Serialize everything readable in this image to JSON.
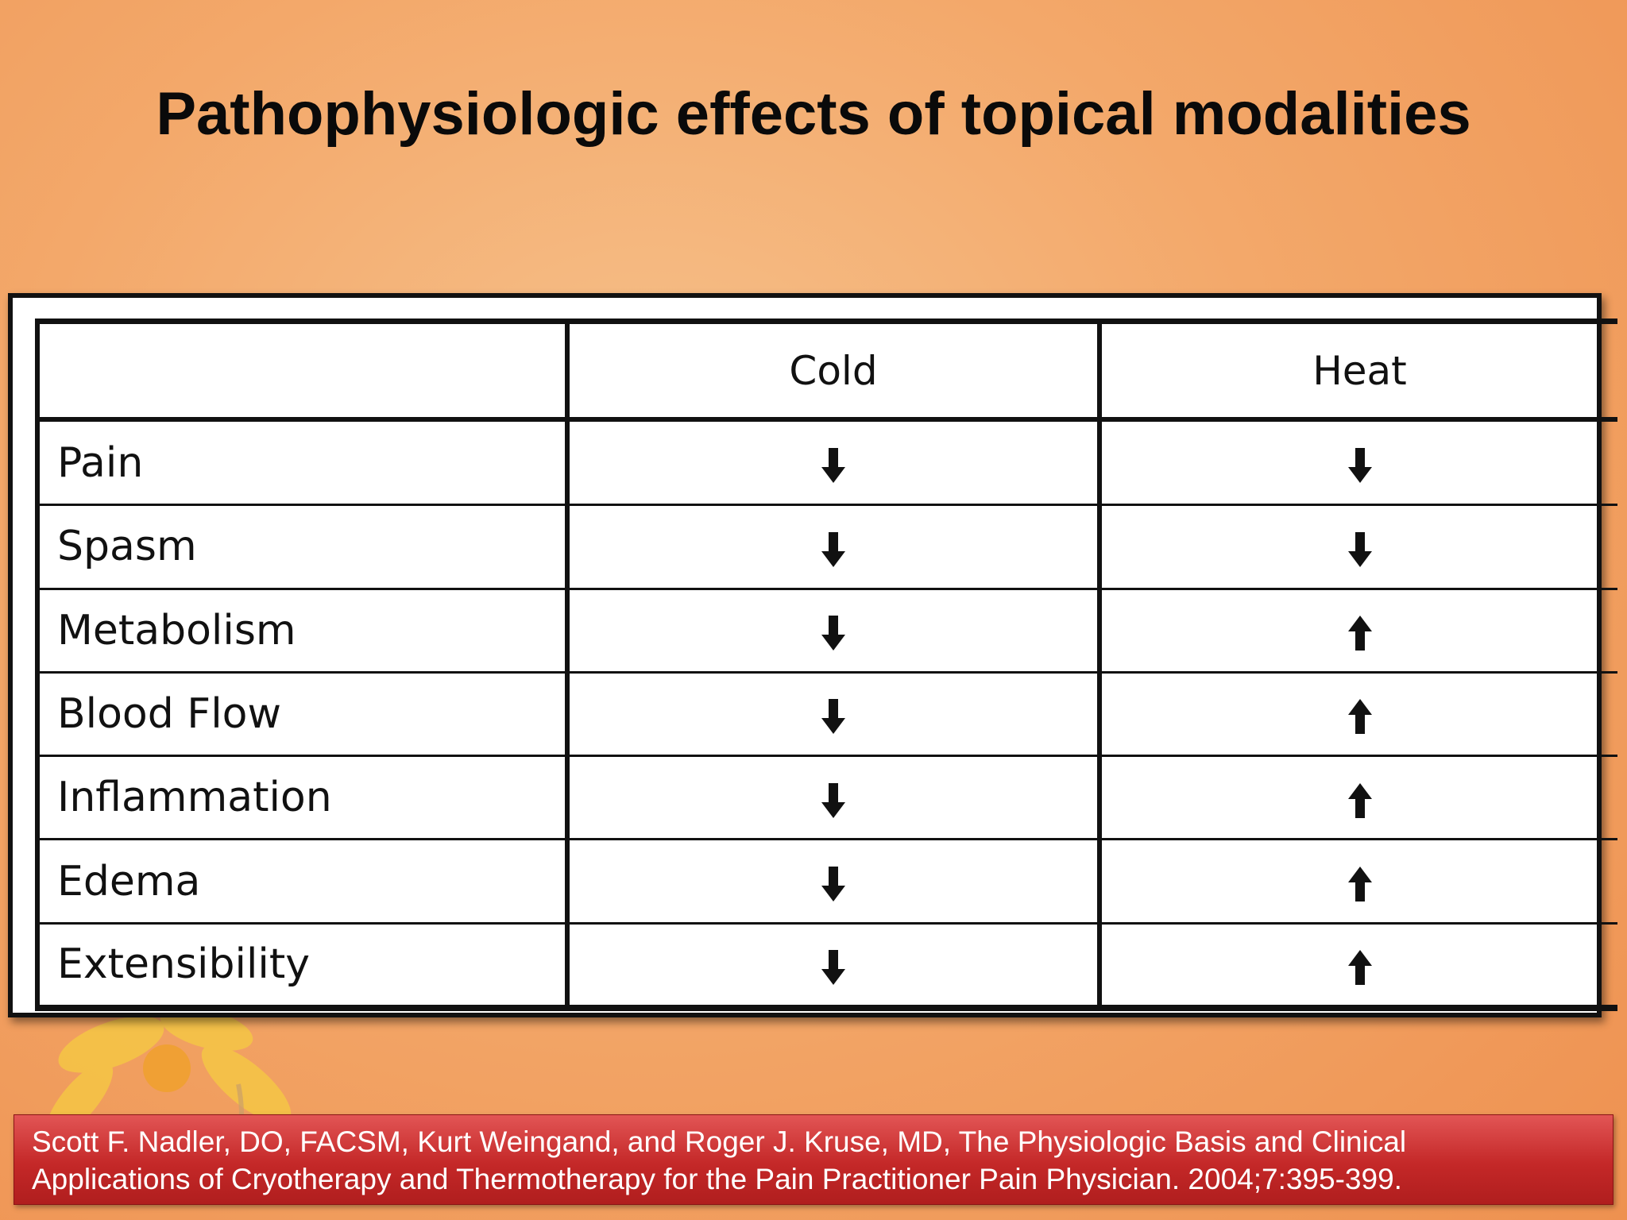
{
  "slide": {
    "title": "Pathophysiologic effects of topical modalities"
  },
  "table": {
    "columns": [
      "",
      "Cold",
      "Heat"
    ],
    "rows": [
      {
        "label": "Pain",
        "cold": "down",
        "heat": "down"
      },
      {
        "label": "Spasm",
        "cold": "down",
        "heat": "down"
      },
      {
        "label": "Metabolism",
        "cold": "down",
        "heat": "up"
      },
      {
        "label": "Blood Flow",
        "cold": "down",
        "heat": "up"
      },
      {
        "label": "Inflammation",
        "cold": "down",
        "heat": "up"
      },
      {
        "label": "Edema",
        "cold": "down",
        "heat": "up"
      },
      {
        "label": "Extensibility",
        "cold": "down",
        "heat": "up"
      }
    ],
    "icons": {
      "down": "arrow-down-icon",
      "up": "arrow-up-icon"
    }
  },
  "citation": {
    "line1": "Scott F. Nadler, DO, FACSM, Kurt Weingand, and Roger J. Kruse, MD, The Physiologic Basis and Clinical",
    "line2": "Applications of Cryotherapy and Thermotherapy for the Pain Practitioner Pain Physician. 2004;7:395-399."
  },
  "colors": {
    "background": "#f3a86a",
    "citation_box": "#c42828",
    "flower": "#f2c23a"
  }
}
